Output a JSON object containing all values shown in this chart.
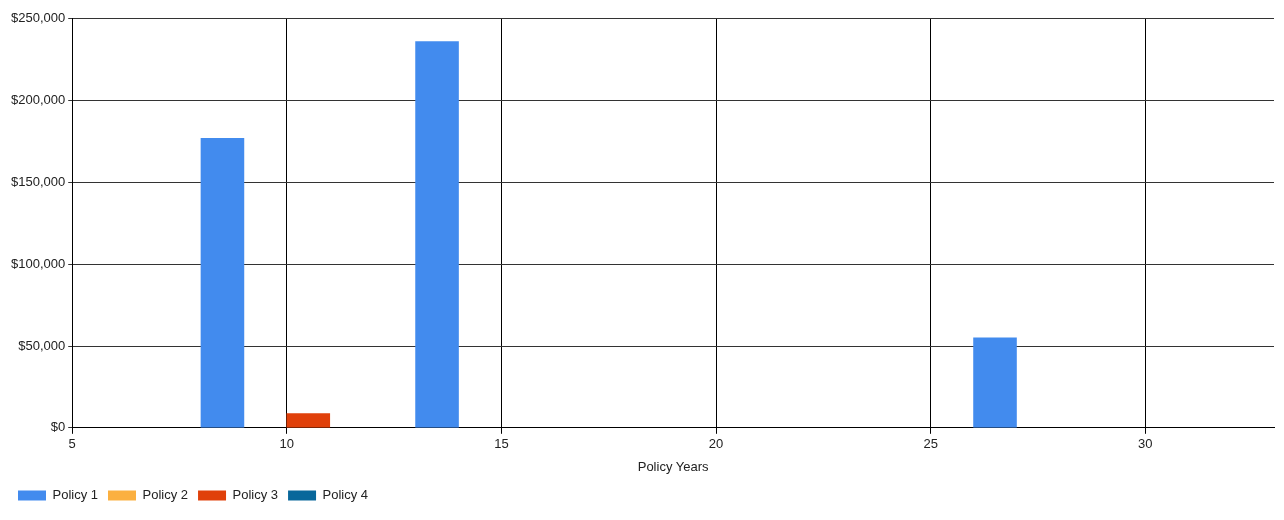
{
  "chart_data": {
    "type": "bar",
    "xlabel": "Policy Years",
    "xlim": [
      5,
      33
    ],
    "xticks": [
      5,
      10,
      15,
      20,
      25,
      30
    ],
    "ylim": [
      0,
      250000
    ],
    "yticks": [
      {
        "value": 0,
        "label": "$0"
      },
      {
        "value": 50000,
        "label": "$50,000"
      },
      {
        "value": 100000,
        "label": "$100,000"
      },
      {
        "value": 150000,
        "label": "$150,000"
      },
      {
        "value": 200000,
        "label": "$200,000"
      },
      {
        "value": 250000,
        "label": "$250,000"
      }
    ],
    "series": [
      {
        "name": "Policy 1",
        "color": "#428bee",
        "x": [
          8.5,
          13.5,
          26.5
        ],
        "values": [
          177000,
          236000,
          55000
        ]
      },
      {
        "name": "Policy 2",
        "color": "#fbb040"
      },
      {
        "name": "Policy 3",
        "color": "#e0400a",
        "x": [
          10.5
        ],
        "values": [
          8700
        ]
      },
      {
        "name": "Policy 4",
        "color": "#08679b"
      }
    ],
    "grid": true,
    "legend": "bottom left"
  }
}
